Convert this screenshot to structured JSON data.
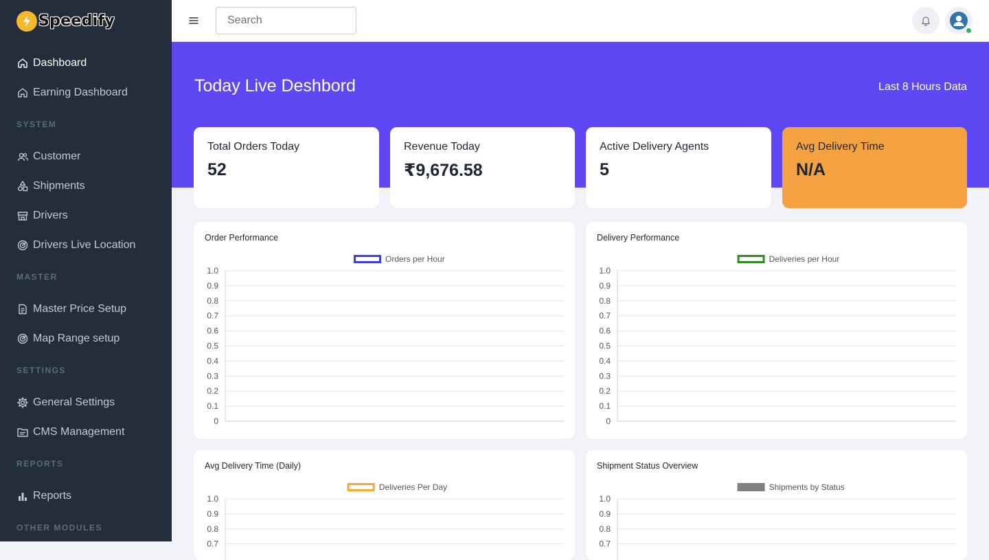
{
  "brand": {
    "name": "Speedify"
  },
  "sidebar": {
    "items": [
      {
        "label": "Dashboard",
        "icon": "home-icon",
        "active": true
      },
      {
        "label": "Earning Dashboard",
        "icon": "home-icon"
      }
    ],
    "sections": [
      {
        "title": "SYSTEM",
        "items": [
          {
            "label": "Customer",
            "icon": "users-icon"
          },
          {
            "label": "Shipments",
            "icon": "shapes-icon"
          },
          {
            "label": "Drivers",
            "icon": "store-icon"
          },
          {
            "label": "Drivers Live Location",
            "icon": "radar-icon"
          }
        ]
      },
      {
        "title": "MASTER",
        "items": [
          {
            "label": "Master Price Setup",
            "icon": "document-icon"
          },
          {
            "label": "Map Range setup",
            "icon": "radar-icon"
          }
        ]
      },
      {
        "title": "SETTINGS",
        "items": [
          {
            "label": "General Settings",
            "icon": "gear-icon"
          },
          {
            "label": "CMS Management",
            "icon": "folder-icon"
          }
        ]
      },
      {
        "title": "REPORTS",
        "items": [
          {
            "label": "Reports",
            "icon": "bar-chart-icon"
          }
        ]
      },
      {
        "title": "OTHER MODULES",
        "items": []
      }
    ]
  },
  "topbar": {
    "search_placeholder": "Search"
  },
  "hero": {
    "title": "Today Live Deshbord",
    "subtitle": "Last 8 Hours Data"
  },
  "stats": [
    {
      "label": "Total Orders Today",
      "value": "52"
    },
    {
      "label": "Revenue Today",
      "value": "₹9,676.58"
    },
    {
      "label": "Active Delivery Agents",
      "value": "5"
    },
    {
      "label": "Avg Delivery Time",
      "value": "N/A"
    }
  ],
  "colors": {
    "primary": "#6047f4",
    "sidebar": "#232d3b",
    "accent_orange": "#f4a142"
  },
  "chart_data": [
    {
      "type": "line",
      "title": "Order Performance",
      "series": [
        {
          "name": "Orders per Hour",
          "values": [],
          "color": "#3d3df0"
        }
      ],
      "ylim": [
        0,
        1
      ],
      "y_ticks": [
        "1.0",
        "0.9",
        "0.8",
        "0.7",
        "0.6",
        "0.5",
        "0.4",
        "0.3",
        "0.2",
        "0.1",
        "0"
      ],
      "grid": true,
      "legend": "top-center"
    },
    {
      "type": "line",
      "title": "Delivery Performance",
      "series": [
        {
          "name": "Deliveries per Hour",
          "values": [],
          "color": "#2e8b1e"
        }
      ],
      "ylim": [
        0,
        1
      ],
      "y_ticks": [
        "1.0",
        "0.9",
        "0.8",
        "0.7",
        "0.6",
        "0.5",
        "0.4",
        "0.3",
        "0.2",
        "0.1",
        "0"
      ],
      "grid": true,
      "legend": "top-center"
    },
    {
      "type": "line",
      "title": "Avg Delivery Time (Daily)",
      "series": [
        {
          "name": "Deliveries Per Day",
          "values": [],
          "color": "#f5a935"
        }
      ],
      "ylim": [
        0,
        1
      ],
      "y_ticks": [
        "1.0",
        "0.9",
        "0.8",
        "0.7"
      ],
      "grid": true,
      "legend": "top-center"
    },
    {
      "type": "bar",
      "title": "Shipment Status Overview",
      "series": [
        {
          "name": "Shipments by Status",
          "values": [],
          "color": "#808080"
        }
      ],
      "ylim": [
        0,
        1
      ],
      "y_ticks": [
        "1.0",
        "0.9",
        "0.8",
        "0.7"
      ],
      "grid": true,
      "legend": "top-center"
    }
  ]
}
